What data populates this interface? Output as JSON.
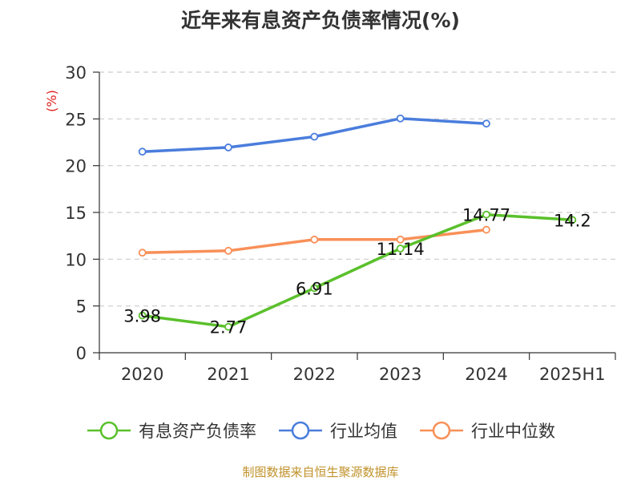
{
  "chart_data": {
    "type": "line",
    "title": "近年来有息资产负债率情况(%)",
    "ylabel": "(%)",
    "xlabel": "",
    "categories": [
      "2020",
      "2021",
      "2022",
      "2023",
      "2024",
      "2025H1"
    ],
    "ylim": [
      0,
      30
    ],
    "yticks": [
      0,
      5,
      10,
      15,
      20,
      25,
      30
    ],
    "grid": "horizontal dashed",
    "legend_position": "bottom",
    "series": [
      {
        "name": "有息资产负债率",
        "color": "#5ac02c",
        "values": [
          3.98,
          2.77,
          6.91,
          11.14,
          14.77,
          14.2
        ],
        "labels": [
          "3.98",
          "2.77",
          "6.91",
          "11.14",
          "14.77",
          "14.2"
        ]
      },
      {
        "name": "行业均值",
        "color": "#4a7ddc",
        "values": [
          21.5,
          21.95,
          23.1,
          25.05,
          24.5,
          null
        ]
      },
      {
        "name": "行业中位数",
        "color": "#f89058",
        "values": [
          10.7,
          10.9,
          12.1,
          12.1,
          13.15,
          null
        ]
      }
    ],
    "source": "制图数据来自恒生聚源数据库"
  }
}
